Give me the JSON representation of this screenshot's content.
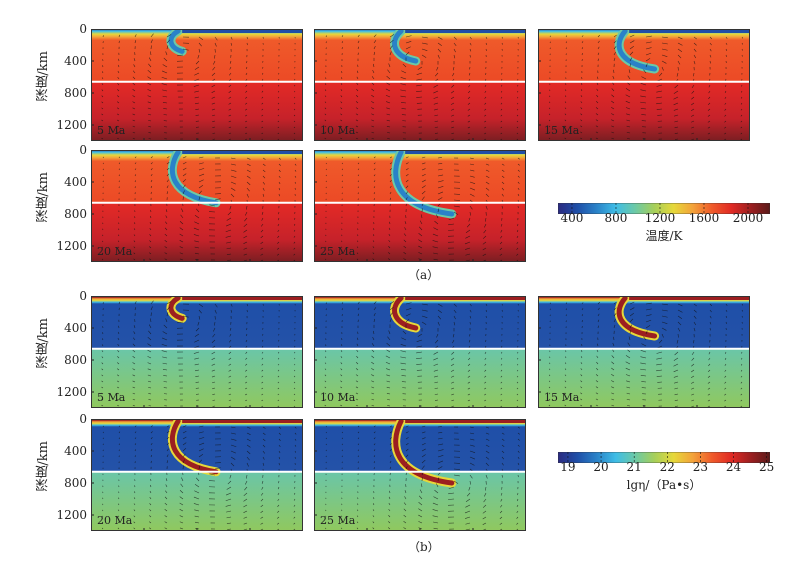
{
  "chart_data": [
    {
      "type": "heatmap",
      "figure": "a",
      "caption": "（a）",
      "quantity": "temperature",
      "ylabel": "深度/km",
      "yticks": [
        "0",
        "400",
        "800",
        "1200"
      ],
      "ylim": [
        0,
        1400
      ],
      "boundary_depth_km": 660,
      "panels": [
        {
          "time": "5 Ma",
          "slab_tip_depth_km": 280,
          "slab_tip_shift": 0.0
        },
        {
          "time": "10 Ma",
          "slab_tip_depth_km": 400,
          "slab_tip_shift": 0.05
        },
        {
          "time": "15 Ma",
          "slab_tip_depth_km": 500,
          "slab_tip_shift": 0.12
        },
        {
          "time": "20 Ma",
          "slab_tip_depth_km": 660,
          "slab_tip_shift": 0.16
        },
        {
          "time": "25 Ma",
          "slab_tip_depth_km": 800,
          "slab_tip_shift": 0.22
        }
      ],
      "colorbar": {
        "label": "温度/K",
        "ticks": [
          "400",
          "800",
          "1200",
          "1600",
          "2000"
        ],
        "range": [
          273,
          2200
        ],
        "tick_values": [
          400,
          800,
          1200,
          1600,
          2000
        ]
      }
    },
    {
      "type": "heatmap",
      "figure": "b",
      "caption": "（b）",
      "quantity": "viscosity",
      "ylabel": "深度/km",
      "yticks": [
        "0",
        "400",
        "800",
        "1200"
      ],
      "ylim": [
        0,
        1400
      ],
      "boundary_depth_km": 660,
      "panels": [
        {
          "time": "5 Ma",
          "slab_tip_depth_km": 280,
          "slab_tip_shift": 0.0
        },
        {
          "time": "10 Ma",
          "slab_tip_depth_km": 400,
          "slab_tip_shift": 0.05
        },
        {
          "time": "15 Ma",
          "slab_tip_depth_km": 500,
          "slab_tip_shift": 0.12
        },
        {
          "time": "20 Ma",
          "slab_tip_depth_km": 660,
          "slab_tip_shift": 0.16
        },
        {
          "time": "25 Ma",
          "slab_tip_depth_km": 800,
          "slab_tip_shift": 0.22
        }
      ],
      "colorbar": {
        "label": "lgη/（Pa•s）",
        "ticks": [
          "19",
          "20",
          "21",
          "22",
          "23",
          "24",
          "25"
        ],
        "range": [
          18.7,
          25.1
        ],
        "tick_values": [
          19,
          20,
          21,
          22,
          23,
          24,
          25
        ]
      }
    }
  ],
  "colors": {
    "jet": [
      "#2b2a80",
      "#1f4fa8",
      "#2a82c8",
      "#3fbde6",
      "#6cc9a6",
      "#a6cf5a",
      "#e6d83a",
      "#f3a23a",
      "#ef5a2a",
      "#e02a24",
      "#9c1f20",
      "#6b1a1a"
    ],
    "boundary": "#ffffff"
  }
}
